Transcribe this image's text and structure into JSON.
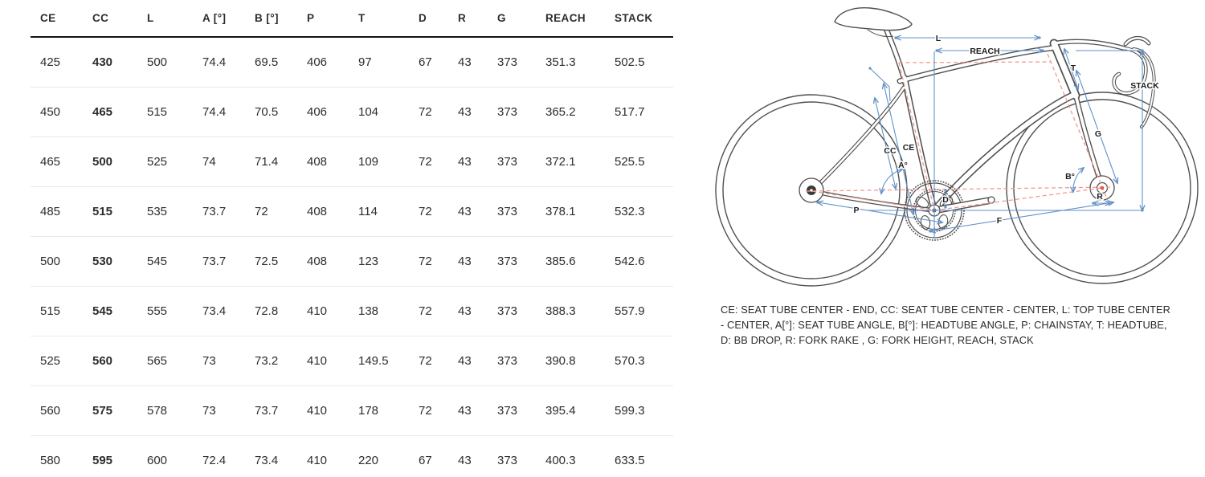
{
  "table": {
    "headers": [
      "CE",
      "CC",
      "L",
      "A [°]",
      "B [°]",
      "P",
      "T",
      "D",
      "R",
      "G",
      "REACH",
      "STACK"
    ],
    "rows": [
      [
        "425",
        "430",
        "500",
        "74.4",
        "69.5",
        "406",
        "97",
        "67",
        "43",
        "373",
        "351.3",
        "502.5"
      ],
      [
        "450",
        "465",
        "515",
        "74.4",
        "70.5",
        "406",
        "104",
        "72",
        "43",
        "373",
        "365.2",
        "517.7"
      ],
      [
        "465",
        "500",
        "525",
        "74",
        "71.4",
        "408",
        "109",
        "72",
        "43",
        "373",
        "372.1",
        "525.5"
      ],
      [
        "485",
        "515",
        "535",
        "73.7",
        "72",
        "408",
        "114",
        "72",
        "43",
        "373",
        "378.1",
        "532.3"
      ],
      [
        "500",
        "530",
        "545",
        "73.7",
        "72.5",
        "408",
        "123",
        "72",
        "43",
        "373",
        "385.6",
        "542.6"
      ],
      [
        "515",
        "545",
        "555",
        "73.4",
        "72.8",
        "410",
        "138",
        "72",
        "43",
        "373",
        "388.3",
        "557.9"
      ],
      [
        "525",
        "560",
        "565",
        "73",
        "73.2",
        "410",
        "149.5",
        "72",
        "43",
        "373",
        "390.8",
        "570.3"
      ],
      [
        "560",
        "575",
        "578",
        "73",
        "73.7",
        "410",
        "178",
        "72",
        "43",
        "373",
        "395.4",
        "599.3"
      ],
      [
        "580",
        "595",
        "600",
        "72.4",
        "73.4",
        "410",
        "220",
        "67",
        "43",
        "373",
        "400.3",
        "633.5"
      ]
    ],
    "emphasized_column": "CC"
  },
  "diagram": {
    "labels": {
      "l": "L",
      "reach": "REACH",
      "stack": "STACK",
      "t": "T",
      "g": "G",
      "b": "B°",
      "r": "R",
      "f": "F",
      "d": "D",
      "a": "A°",
      "cc": "CC",
      "ce": "CE",
      "p": "P"
    },
    "colors": {
      "dimension_blue": "#6292c8",
      "guide_red": "#f19b93",
      "bike_line": "#4f4f4f",
      "label_dark": "#1c1c1c"
    }
  },
  "legend": {
    "text": "CE: SEAT TUBE CENTER - END, CC: SEAT TUBE CENTER - CENTER, L: TOP TUBE CENTER - CENTER, A[°]: SEAT TUBE ANGLE, B[°]: HEADTUBE ANGLE, P: CHAINSTAY, T: HEADTUBE, D: BB DROP, R: FORK RAKE , G: FORK HEIGHT, REACH, STACK"
  }
}
